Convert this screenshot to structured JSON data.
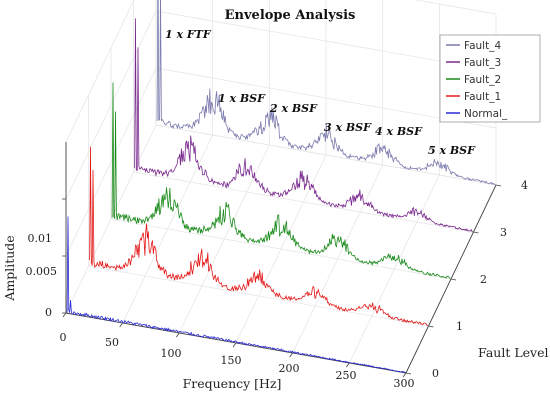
{
  "chart_data": {
    "type": "line",
    "title": "Envelope Analysis",
    "xlabel": "Frequency [Hz]",
    "ylabel": "Fault Level",
    "zlabel": "Amplitude",
    "xlim": [
      0,
      300
    ],
    "ylim": [
      0,
      4
    ],
    "zlim": [
      0,
      0.015
    ],
    "x_ticks": [
      "0",
      "50",
      "100",
      "150",
      "200",
      "250",
      "300"
    ],
    "y_ticks": [
      "0",
      "1",
      "2",
      "3",
      "4"
    ],
    "z_ticks": [
      "0",
      "0.005",
      "0.01"
    ],
    "grid": true,
    "legend_position": "top-right",
    "legend": [
      "Fault_4",
      "Fault_3",
      "Fault_2",
      "Fault_1",
      "Normal_"
    ],
    "series": [
      {
        "name": "Fault_4",
        "level": 4,
        "color": "#7b7bae",
        "peaks": [
          {
            "f": 2,
            "amp": 0.0155
          },
          {
            "f": 4,
            "amp": 0.012
          },
          {
            "f": 50,
            "amp": 0.0042
          },
          {
            "f": 100,
            "amp": 0.0032
          },
          {
            "f": 150,
            "amp": 0.0024
          },
          {
            "f": 200,
            "amp": 0.0018
          },
          {
            "f": 250,
            "amp": 0.0013
          }
        ],
        "noise": 0.0006
      },
      {
        "name": "Fault_3",
        "level": 3,
        "color": "#7a2a8e",
        "peaks": [
          {
            "f": 2,
            "amp": 0.0135
          },
          {
            "f": 4,
            "amp": 0.011
          },
          {
            "f": 50,
            "amp": 0.0038
          },
          {
            "f": 100,
            "amp": 0.003
          },
          {
            "f": 150,
            "amp": 0.0026
          },
          {
            "f": 200,
            "amp": 0.0018
          },
          {
            "f": 250,
            "amp": 0.0012
          }
        ],
        "noise": 0.0006
      },
      {
        "name": "Fault_2",
        "level": 2,
        "color": "#1a8a1a",
        "peaks": [
          {
            "f": 2,
            "amp": 0.012
          },
          {
            "f": 4,
            "amp": 0.0095
          },
          {
            "f": 50,
            "amp": 0.0036
          },
          {
            "f": 100,
            "amp": 0.0033
          },
          {
            "f": 150,
            "amp": 0.0028
          },
          {
            "f": 200,
            "amp": 0.0022
          },
          {
            "f": 250,
            "amp": 0.0015
          }
        ],
        "noise": 0.0007
      },
      {
        "name": "Fault_1",
        "level": 1,
        "color": "#e41a1a",
        "peaks": [
          {
            "f": 2,
            "amp": 0.0105
          },
          {
            "f": 4,
            "amp": 0.0085
          },
          {
            "f": 50,
            "amp": 0.0042
          },
          {
            "f": 100,
            "amp": 0.0032
          },
          {
            "f": 150,
            "amp": 0.0022
          },
          {
            "f": 200,
            "amp": 0.0016
          },
          {
            "f": 250,
            "amp": 0.0011
          }
        ],
        "noise": 0.0007
      },
      {
        "name": "Normal_",
        "level": 0,
        "color": "#2a2ad6",
        "peaks": [
          {
            "f": 2,
            "amp": 0.0085
          },
          {
            "f": 4,
            "amp": 0.0012
          }
        ],
        "noise": 0.0003
      }
    ],
    "annotations": [
      "1 x FTF",
      "1 x BSF",
      "2 x BSF",
      "3 x BSF",
      "4 x BSF",
      "5 x BSF"
    ]
  }
}
